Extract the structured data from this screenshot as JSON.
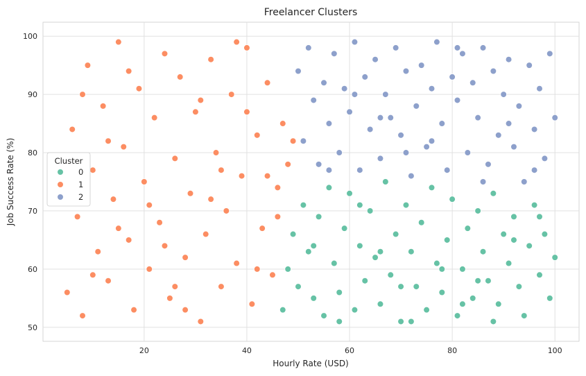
{
  "chart_data": {
    "type": "scatter",
    "title": "Freelancer Clusters",
    "xlabel": "Hourly Rate (USD)",
    "ylabel": "Job Success Rate (%)",
    "xlim": [
      0.3,
      104.7
    ],
    "ylim": [
      47.6,
      102.4
    ],
    "xticks": [
      20,
      40,
      60,
      80,
      100
    ],
    "yticks": [
      50,
      60,
      70,
      80,
      90,
      100
    ],
    "grid": true,
    "legend": {
      "title": "Cluster",
      "placement": "center-left"
    },
    "series": [
      {
        "name": "0",
        "color": "#66c2a5",
        "points": [
          [
            47,
            53
          ],
          [
            48,
            60
          ],
          [
            49,
            66
          ],
          [
            50,
            57
          ],
          [
            51,
            71
          ],
          [
            52,
            63
          ],
          [
            53,
            55
          ],
          [
            54,
            69
          ],
          [
            55,
            52
          ],
          [
            56,
            74
          ],
          [
            57,
            61
          ],
          [
            58,
            56
          ],
          [
            59,
            67
          ],
          [
            60,
            73
          ],
          [
            61,
            53
          ],
          [
            62,
            64
          ],
          [
            63,
            58
          ],
          [
            64,
            70
          ],
          [
            65,
            62
          ],
          [
            66,
            54
          ],
          [
            67,
            75
          ],
          [
            68,
            59
          ],
          [
            69,
            66
          ],
          [
            70,
            51
          ],
          [
            71,
            71
          ],
          [
            72,
            63
          ],
          [
            73,
            57
          ],
          [
            74,
            68
          ],
          [
            75,
            53
          ],
          [
            76,
            74
          ],
          [
            77,
            61
          ],
          [
            78,
            56
          ],
          [
            79,
            65
          ],
          [
            80,
            72
          ],
          [
            81,
            52
          ],
          [
            82,
            60
          ],
          [
            83,
            67
          ],
          [
            84,
            55
          ],
          [
            85,
            70
          ],
          [
            86,
            63
          ],
          [
            87,
            58
          ],
          [
            88,
            73
          ],
          [
            89,
            54
          ],
          [
            90,
            66
          ],
          [
            91,
            61
          ],
          [
            92,
            69
          ],
          [
            93,
            57
          ],
          [
            94,
            52
          ],
          [
            95,
            64
          ],
          [
            96,
            71
          ],
          [
            97,
            59
          ],
          [
            98,
            66
          ],
          [
            99,
            55
          ],
          [
            100,
            62
          ],
          [
            58,
            51
          ],
          [
            72,
            51
          ],
          [
            88,
            51
          ],
          [
            66,
            63
          ],
          [
            78,
            60
          ],
          [
            92,
            65
          ],
          [
            53,
            64
          ],
          [
            62,
            71
          ],
          [
            85,
            58
          ],
          [
            97,
            69
          ],
          [
            70,
            57
          ],
          [
            82,
            54
          ]
        ]
      },
      {
        "name": "1",
        "color": "#fc8d62",
        "points": [
          [
            5,
            56
          ],
          [
            6,
            84
          ],
          [
            7,
            69
          ],
          [
            8,
            52
          ],
          [
            9,
            95
          ],
          [
            10,
            77
          ],
          [
            11,
            63
          ],
          [
            12,
            88
          ],
          [
            13,
            58
          ],
          [
            14,
            72
          ],
          [
            15,
            99
          ],
          [
            16,
            81
          ],
          [
            17,
            65
          ],
          [
            18,
            53
          ],
          [
            19,
            91
          ],
          [
            20,
            75
          ],
          [
            21,
            60
          ],
          [
            22,
            86
          ],
          [
            23,
            68
          ],
          [
            24,
            97
          ],
          [
            25,
            55
          ],
          [
            26,
            79
          ],
          [
            27,
            93
          ],
          [
            28,
            62
          ],
          [
            29,
            73
          ],
          [
            30,
            87
          ],
          [
            31,
            51
          ],
          [
            32,
            66
          ],
          [
            33,
            96
          ],
          [
            34,
            80
          ],
          [
            35,
            57
          ],
          [
            36,
            70
          ],
          [
            37,
            90
          ],
          [
            38,
            61
          ],
          [
            39,
            76
          ],
          [
            40,
            98
          ],
          [
            41,
            54
          ],
          [
            42,
            83
          ],
          [
            43,
            67
          ],
          [
            44,
            92
          ],
          [
            45,
            59
          ],
          [
            46,
            74
          ],
          [
            47,
            85
          ],
          [
            48,
            78
          ],
          [
            49,
            82
          ],
          [
            10,
            59
          ],
          [
            13,
            82
          ],
          [
            17,
            94
          ],
          [
            21,
            71
          ],
          [
            24,
            64
          ],
          [
            28,
            53
          ],
          [
            31,
            89
          ],
          [
            35,
            77
          ],
          [
            38,
            99
          ],
          [
            42,
            60
          ],
          [
            46,
            69
          ],
          [
            8,
            90
          ],
          [
            15,
            67
          ],
          [
            26,
            57
          ],
          [
            33,
            72
          ],
          [
            40,
            87
          ],
          [
            44,
            76
          ]
        ]
      },
      {
        "name": "2",
        "color": "#8da0cb",
        "points": [
          [
            50,
            94
          ],
          [
            51,
            82
          ],
          [
            52,
            98
          ],
          [
            53,
            89
          ],
          [
            54,
            78
          ],
          [
            55,
            92
          ],
          [
            56,
            85
          ],
          [
            57,
            97
          ],
          [
            58,
            80
          ],
          [
            59,
            91
          ],
          [
            60,
            87
          ],
          [
            61,
            99
          ],
          [
            62,
            77
          ],
          [
            63,
            93
          ],
          [
            64,
            84
          ],
          [
            65,
            96
          ],
          [
            66,
            79
          ],
          [
            67,
            90
          ],
          [
            68,
            86
          ],
          [
            69,
            98
          ],
          [
            70,
            83
          ],
          [
            71,
            94
          ],
          [
            72,
            76
          ],
          [
            73,
            88
          ],
          [
            74,
            95
          ],
          [
            75,
            81
          ],
          [
            76,
            91
          ],
          [
            77,
            99
          ],
          [
            78,
            85
          ],
          [
            79,
            77
          ],
          [
            80,
            93
          ],
          [
            81,
            89
          ],
          [
            82,
            97
          ],
          [
            83,
            80
          ],
          [
            84,
            92
          ],
          [
            85,
            86
          ],
          [
            86,
            98
          ],
          [
            87,
            78
          ],
          [
            88,
            94
          ],
          [
            89,
            83
          ],
          [
            90,
            90
          ],
          [
            91,
            96
          ],
          [
            92,
            81
          ],
          [
            93,
            88
          ],
          [
            94,
            75
          ],
          [
            95,
            95
          ],
          [
            96,
            84
          ],
          [
            97,
            91
          ],
          [
            98,
            79
          ],
          [
            99,
            97
          ],
          [
            100,
            86
          ],
          [
            56,
            77
          ],
          [
            66,
            86
          ],
          [
            76,
            82
          ],
          [
            86,
            75
          ],
          [
            96,
            77
          ],
          [
            61,
            90
          ],
          [
            71,
            80
          ],
          [
            81,
            98
          ],
          [
            91,
            85
          ]
        ]
      }
    ]
  }
}
